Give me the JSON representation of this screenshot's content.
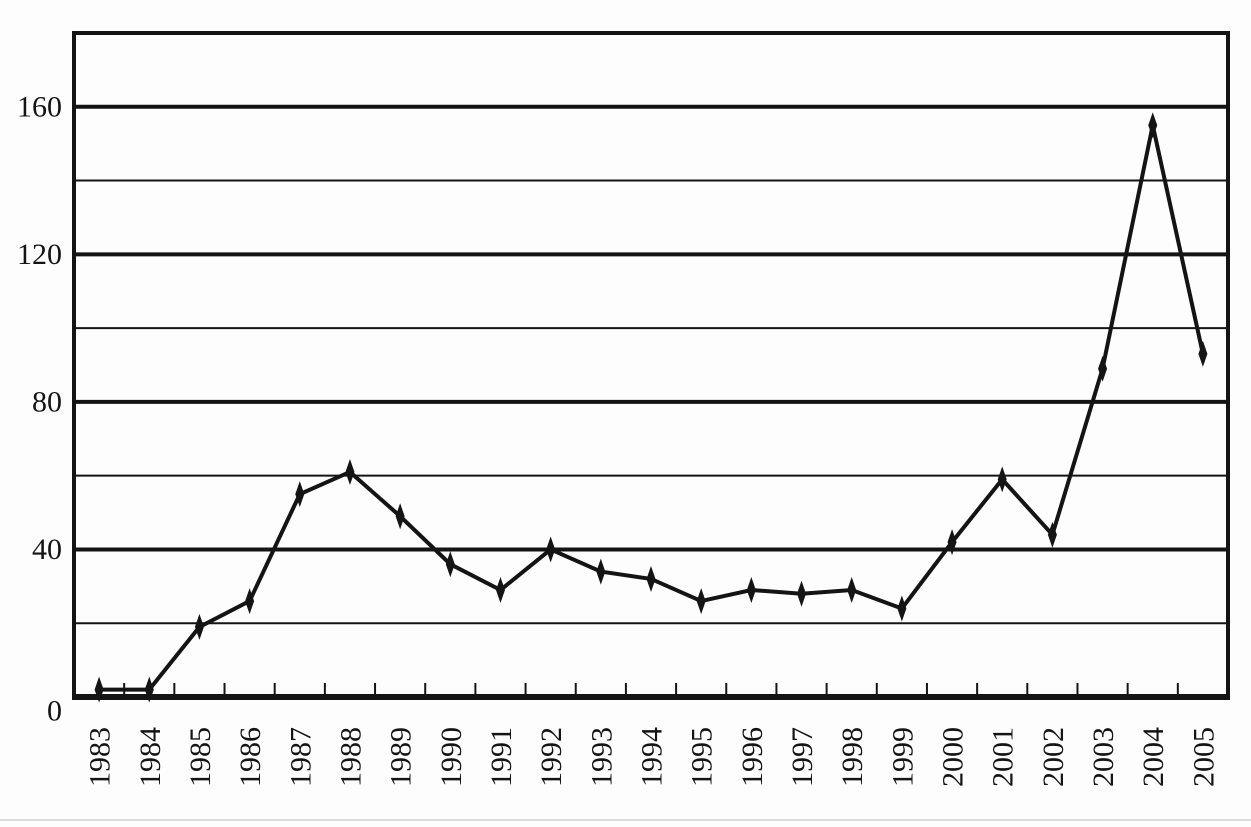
{
  "chart_data": {
    "type": "line",
    "categories": [
      "1983",
      "1984",
      "1985",
      "1986",
      "1987",
      "1988",
      "1989",
      "1990",
      "1991",
      "1992",
      "1993",
      "1994",
      "1995",
      "1996",
      "1997",
      "1998",
      "1999",
      "2000",
      "2001",
      "2002",
      "2003",
      "2004",
      "2005"
    ],
    "values": [
      2,
      2,
      19,
      26,
      55,
      61,
      49,
      36,
      29,
      40,
      34,
      32,
      26,
      29,
      28,
      29,
      24,
      42,
      59,
      44,
      89,
      155,
      93
    ],
    "ylim": [
      0,
      180
    ],
    "yticks_labeled": [
      0,
      40,
      80,
      120,
      160
    ],
    "gridline_step": 20,
    "grid": "horizontal",
    "legend": "none",
    "marker": "diamond",
    "tick_placement": "between-categories",
    "colors": {
      "ink": "#141414",
      "background": "#fdfdfd",
      "scan_edge": "#dcdcdc"
    }
  }
}
